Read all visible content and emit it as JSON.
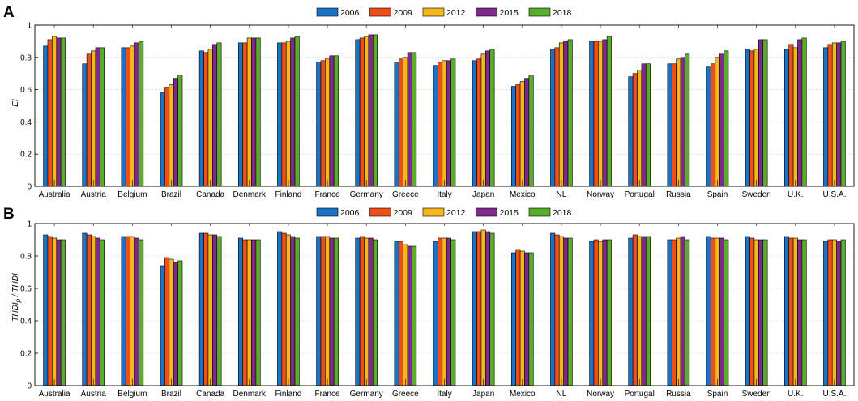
{
  "chart_data": [
    {
      "panel_label": "A",
      "type": "bar",
      "ylabel": "EI",
      "ylim": [
        0,
        1
      ],
      "yticks": [
        "0",
        "0.2",
        "0.4",
        "0.6",
        "0.8",
        "1"
      ],
      "grid": true,
      "legend_position": "top-center",
      "categories": [
        "Australia",
        "Austria",
        "Belgium",
        "Brazil",
        "Canada",
        "Denmark",
        "Finland",
        "France",
        "Germany",
        "Greece",
        "Italy",
        "Japan",
        "Mexico",
        "NL",
        "Norway",
        "Portugal",
        "Russia",
        "Spain",
        "Sweden",
        "U.K.",
        "U.S.A."
      ],
      "series": [
        {
          "name": "2006",
          "values": [
            0.87,
            0.76,
            0.86,
            0.58,
            0.84,
            0.89,
            0.89,
            0.77,
            0.91,
            0.77,
            0.75,
            0.78,
            0.62,
            0.85,
            0.9,
            0.68,
            0.76,
            0.74,
            0.85,
            0.85,
            0.86
          ]
        },
        {
          "name": "2009",
          "values": [
            0.91,
            0.82,
            0.86,
            0.61,
            0.83,
            0.89,
            0.89,
            0.78,
            0.92,
            0.79,
            0.77,
            0.79,
            0.63,
            0.86,
            0.9,
            0.7,
            0.76,
            0.76,
            0.84,
            0.88,
            0.88
          ]
        },
        {
          "name": "2012",
          "values": [
            0.93,
            0.84,
            0.87,
            0.63,
            0.85,
            0.92,
            0.9,
            0.79,
            0.93,
            0.8,
            0.78,
            0.82,
            0.65,
            0.89,
            0.9,
            0.72,
            0.79,
            0.8,
            0.85,
            0.86,
            0.89
          ]
        },
        {
          "name": "2015",
          "values": [
            0.92,
            0.86,
            0.89,
            0.67,
            0.88,
            0.92,
            0.92,
            0.81,
            0.94,
            0.83,
            0.78,
            0.84,
            0.67,
            0.9,
            0.91,
            0.76,
            0.8,
            0.82,
            0.91,
            0.91,
            0.89
          ]
        },
        {
          "name": "2018",
          "values": [
            0.92,
            0.86,
            0.9,
            0.69,
            0.89,
            0.92,
            0.93,
            0.81,
            0.94,
            0.83,
            0.79,
            0.85,
            0.69,
            0.91,
            0.93,
            0.76,
            0.82,
            0.84,
            0.91,
            0.92,
            0.9
          ]
        }
      ]
    },
    {
      "panel_label": "B",
      "type": "bar",
      "ylabel": "THDI_p / THDI",
      "ylabel_main": "THDI",
      "ylabel_sub": "p",
      "ylabel_tail": " / THDI",
      "ylim": [
        0,
        1
      ],
      "yticks": [
        "0",
        "0.2",
        "0.4",
        "0.6",
        "0.8",
        "1"
      ],
      "grid": true,
      "legend_position": "top-center",
      "categories": [
        "Australia",
        "Austria",
        "Belgium",
        "Brazil",
        "Canada",
        "Denmark",
        "Finland",
        "France",
        "Germany",
        "Greece",
        "Italy",
        "Japan",
        "Mexico",
        "NL",
        "Norway",
        "Portugal",
        "Russia",
        "Spain",
        "Sweden",
        "U.K.",
        "U.S.A."
      ],
      "series": [
        {
          "name": "2006",
          "values": [
            0.93,
            0.94,
            0.92,
            0.74,
            0.94,
            0.91,
            0.95,
            0.92,
            0.91,
            0.89,
            0.89,
            0.95,
            0.82,
            0.94,
            0.89,
            0.91,
            0.9,
            0.92,
            0.92,
            0.92,
            0.89
          ]
        },
        {
          "name": "2009",
          "values": [
            0.92,
            0.93,
            0.92,
            0.79,
            0.94,
            0.9,
            0.94,
            0.92,
            0.92,
            0.89,
            0.91,
            0.95,
            0.84,
            0.93,
            0.9,
            0.93,
            0.9,
            0.91,
            0.91,
            0.91,
            0.9
          ]
        },
        {
          "name": "2012",
          "values": [
            0.91,
            0.92,
            0.92,
            0.78,
            0.93,
            0.9,
            0.93,
            0.92,
            0.91,
            0.87,
            0.91,
            0.96,
            0.83,
            0.92,
            0.89,
            0.92,
            0.91,
            0.91,
            0.9,
            0.91,
            0.9
          ]
        },
        {
          "name": "2015",
          "values": [
            0.9,
            0.91,
            0.91,
            0.76,
            0.93,
            0.9,
            0.92,
            0.91,
            0.91,
            0.86,
            0.91,
            0.95,
            0.82,
            0.91,
            0.9,
            0.92,
            0.92,
            0.91,
            0.9,
            0.9,
            0.89
          ]
        },
        {
          "name": "2018",
          "values": [
            0.9,
            0.9,
            0.9,
            0.77,
            0.92,
            0.9,
            0.91,
            0.91,
            0.9,
            0.86,
            0.9,
            0.94,
            0.82,
            0.91,
            0.9,
            0.92,
            0.9,
            0.9,
            0.9,
            0.9,
            0.9
          ]
        }
      ]
    }
  ],
  "colors": {
    "2006": "#1c72c4",
    "2009": "#f04e19",
    "2012": "#f6b71c",
    "2015": "#7d2a8c",
    "2018": "#5aad2b"
  }
}
